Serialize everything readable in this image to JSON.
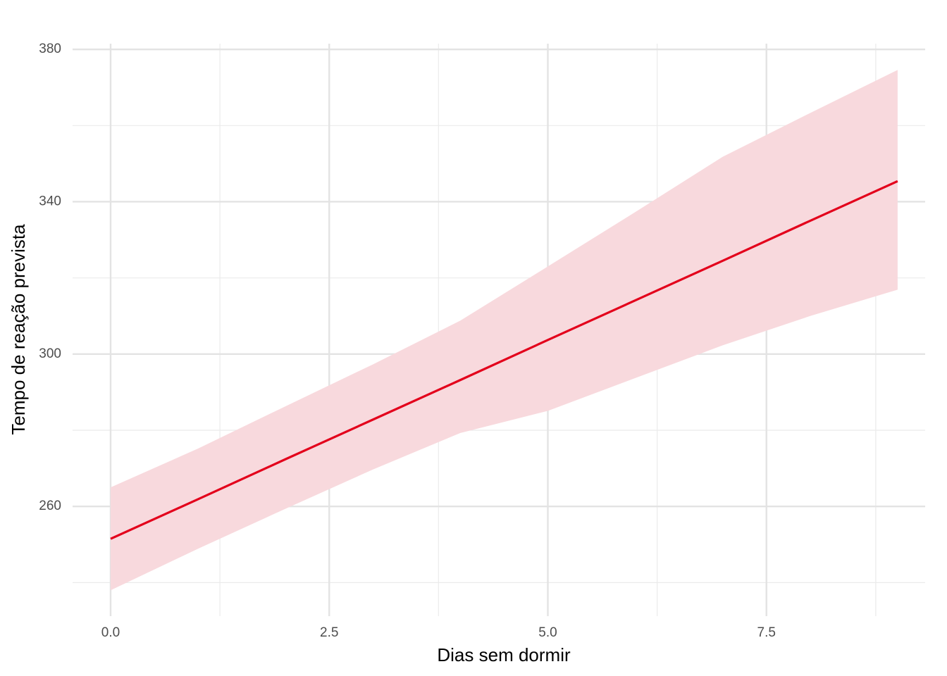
{
  "chart_data": {
    "type": "line",
    "x_label": "Dias sem dormir",
    "y_label": "Tempo de reação prevista",
    "x": [
      0,
      1,
      2,
      3,
      4,
      5,
      6,
      7,
      8,
      9
    ],
    "series": [
      {
        "color": "#e3001b",
        "values": [
          251.5,
          261.9,
          272.4,
          282.8,
          293.2,
          303.7,
          314.1,
          324.5,
          335.0,
          345.4
        ],
        "lower": [
          238.0,
          248.9,
          259.4,
          269.7,
          279.3,
          285.1,
          293.7,
          302.3,
          310.0,
          316.9
        ],
        "upper": [
          265.0,
          275.2,
          286.3,
          297.3,
          308.8,
          323.0,
          337.3,
          351.8,
          363.3,
          374.6
        ],
        "band_color": "#f8d9dd"
      }
    ],
    "xlim": [
      -0.435,
      9.315
    ],
    "ylim": [
      231.2,
      381.5
    ],
    "xticks": [
      {
        "value": 0,
        "label": "0.0"
      },
      {
        "value": 2.5,
        "label": "2.5"
      },
      {
        "value": 5,
        "label": "5.0"
      },
      {
        "value": 7.5,
        "label": "7.5"
      }
    ],
    "x_minor_ticks": [
      1.25,
      3.75,
      6.25,
      8.75
    ],
    "yticks": [
      260,
      300,
      340,
      380
    ],
    "y_minor_ticks": [
      240,
      280,
      320,
      360
    ],
    "grid": true
  }
}
